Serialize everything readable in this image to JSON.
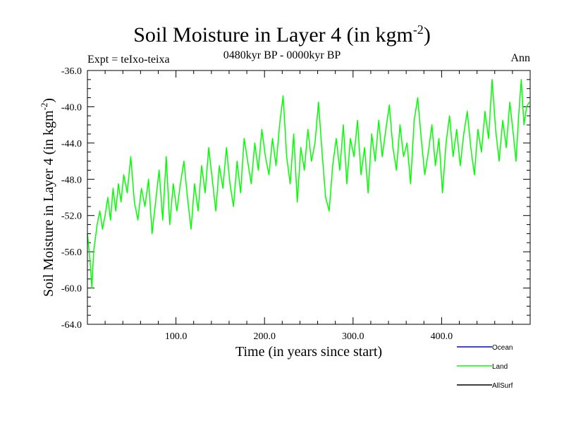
{
  "chart_data": {
    "type": "line",
    "title_main": "Soil Moisture in Layer 4 (in kgm",
    "title_sup": "-2",
    "title_close": ")",
    "subtitle": "0480kyr BP - 0000kyr BP",
    "experiment": "Expt = teIxo-teixa",
    "season": "Ann",
    "xlabel": "Time (in years since start)",
    "ylabel_main": "Soil Moisture in Layer 4 (in kgm",
    "ylabel_sup": "-2",
    "ylabel_close": ")",
    "xlim": [
      0,
      500
    ],
    "ylim": [
      -64.0,
      -36.0
    ],
    "x_ticks": [
      100,
      200,
      300,
      400
    ],
    "x_tick_labels": [
      "100.0",
      "200.0",
      "300.0",
      "400.0"
    ],
    "y_ticks": [
      -64,
      -60,
      -56,
      -52,
      -48,
      -44,
      -40,
      -36
    ],
    "y_tick_labels": [
      "-64.0",
      "-60.0",
      "-56.0",
      "-52.0",
      "-48.0",
      "-44.0",
      "-40.0",
      "-36.0"
    ],
    "legend": [
      {
        "name": "Ocean",
        "color": "#0000ff"
      },
      {
        "name": "Land",
        "color": "#00ff00"
      },
      {
        "name": "AllSurf",
        "color": "#000000"
      }
    ],
    "series": [
      {
        "name": "Land",
        "color": "#00ff00",
        "x": [
          0,
          3,
          5,
          7,
          9,
          11,
          14,
          17,
          20,
          23,
          26,
          29,
          32,
          35,
          38,
          41,
          45,
          49,
          53,
          57,
          61,
          65,
          69,
          73,
          77,
          81,
          85,
          89,
          93,
          97,
          101,
          105,
          109,
          113,
          117,
          121,
          125,
          129,
          133,
          137,
          141,
          145,
          149,
          153,
          157,
          161,
          165,
          169,
          173,
          177,
          181,
          185,
          189,
          193,
          197,
          201,
          205,
          209,
          213,
          217,
          221,
          225,
          229,
          233,
          237,
          241,
          245,
          249,
          253,
          257,
          261,
          265,
          269,
          273,
          277,
          281,
          285,
          289,
          293,
          297,
          301,
          305,
          309,
          313,
          317,
          321,
          325,
          329,
          333,
          337,
          341,
          345,
          349,
          353,
          357,
          361,
          365,
          369,
          373,
          377,
          381,
          385,
          389,
          393,
          397,
          401,
          405,
          409,
          413,
          417,
          421,
          425,
          429,
          433,
          437,
          441,
          445,
          449,
          453,
          457,
          461,
          465,
          469,
          473,
          477,
          481,
          484,
          487,
          490,
          493,
          496,
          499
        ],
        "values": [
          -54.0,
          -57.0,
          -60.0,
          -56.0,
          -54.5,
          -53.0,
          -51.5,
          -53.5,
          -52.0,
          -50.0,
          -52.5,
          -49.0,
          -51.5,
          -48.5,
          -50.5,
          -47.5,
          -49.5,
          -45.5,
          -50.5,
          -52.5,
          -49.0,
          -51.0,
          -48.0,
          -54.0,
          -50.5,
          -47.0,
          -52.5,
          -45.5,
          -53.0,
          -48.5,
          -51.5,
          -48.5,
          -46.0,
          -50.0,
          -53.5,
          -48.5,
          -51.5,
          -46.5,
          -49.5,
          -44.5,
          -48.0,
          -51.5,
          -46.5,
          -49.0,
          -44.5,
          -48.5,
          -51.0,
          -46.0,
          -49.5,
          -43.5,
          -46.0,
          -48.5,
          -44.0,
          -47.0,
          -42.5,
          -45.5,
          -47.5,
          -43.5,
          -46.5,
          -42.0,
          -38.8,
          -45.5,
          -48.5,
          -43.0,
          -50.5,
          -44.5,
          -47.0,
          -42.5,
          -46.0,
          -44.0,
          -39.5,
          -45.0,
          -50.0,
          -51.5,
          -46.5,
          -43.5,
          -47.0,
          -42.0,
          -48.5,
          -43.5,
          -45.5,
          -41.5,
          -47.5,
          -44.5,
          -49.5,
          -43.0,
          -46.0,
          -41.5,
          -45.5,
          -42.5,
          -39.8,
          -44.5,
          -47.0,
          -42.0,
          -45.5,
          -44.0,
          -48.5,
          -41.5,
          -39.0,
          -43.5,
          -47.5,
          -45.0,
          -42.0,
          -46.5,
          -43.5,
          -49.5,
          -44.0,
          -41.0,
          -45.5,
          -42.5,
          -46.5,
          -43.0,
          -40.5,
          -44.5,
          -47.5,
          -42.5,
          -45.0,
          -40.5,
          -43.5,
          -37.0,
          -42.5,
          -46.0,
          -41.5,
          -44.5,
          -39.5,
          -43.0,
          -46.0,
          -41.0,
          -37.0,
          -42.0,
          -40.0,
          -39.5
        ]
      }
    ]
  }
}
